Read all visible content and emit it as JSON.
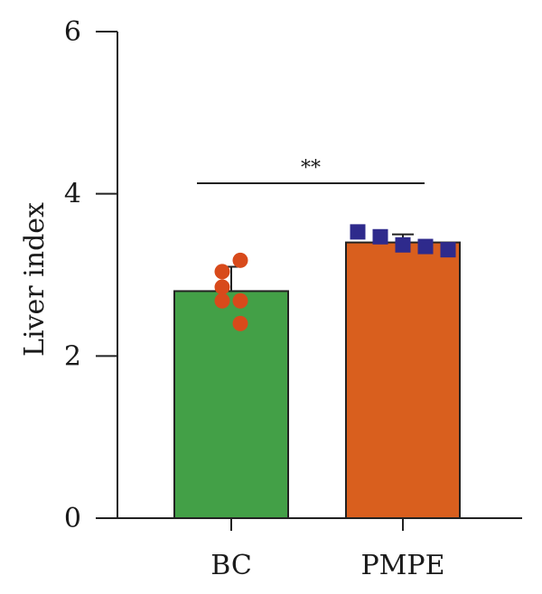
{
  "chart_data": {
    "type": "bar",
    "categories": [
      "BC",
      "PMPE"
    ],
    "values": [
      2.8,
      3.4
    ],
    "error": [
      0.3,
      0.1
    ],
    "bar_colors": [
      "#43a047",
      "#d95f1e"
    ],
    "points": [
      {
        "category": "BC",
        "shape": "circle",
        "color": "#d84a1b",
        "values": [
          3.18,
          3.04,
          2.85,
          2.68,
          2.4,
          2.68
        ]
      },
      {
        "category": "PMPE",
        "shape": "square",
        "color": "#2e2a8c",
        "values": [
          3.53,
          3.47,
          3.37,
          3.35,
          3.31
        ]
      }
    ],
    "xlabel": "",
    "ylabel": "Liver index",
    "ylim": [
      0,
      6
    ],
    "yticks": [
      0,
      2,
      4,
      6
    ],
    "yticklabels": [
      "0",
      "2",
      "4",
      "6"
    ],
    "significance": {
      "label": "**",
      "between": [
        "BC",
        "PMPE"
      ],
      "y": 4.13
    },
    "grid": false,
    "legend": "none"
  }
}
